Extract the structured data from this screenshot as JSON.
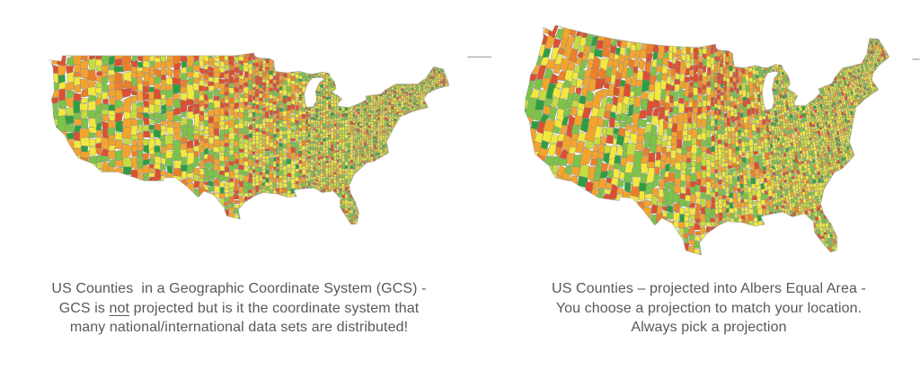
{
  "page": {
    "background": "#ffffff"
  },
  "left_figure": {
    "map_alt": "US counties choropleth shown in a Geographic Coordinate System (unprojected, stretched wide)",
    "caption": {
      "line1": "US Counties  in a Geographic Coordinate System (GCS) -",
      "line2_prefix": "GCS is ",
      "line2_underlined": "not",
      "line2_suffix": " projected but is it the coordinate system that",
      "line3": "many national/international data sets are distributed!"
    }
  },
  "right_figure": {
    "map_alt": "US counties choropleth projected into Albers Equal Area",
    "caption": {
      "line1": "US Counties – projected into Albers Equal Area -",
      "line2": "You choose a projection to match your location.",
      "line3": "Always pick a projection"
    }
  },
  "map_style": {
    "palette": [
      "#f2e83e",
      "#c6dc3e",
      "#7cc34a",
      "#2f9e41",
      "#f4a42c",
      "#ec7f28",
      "#dd4f31"
    ],
    "border_color": "#8a8a8a",
    "water_color": "#ffffff",
    "outline_color": "#9a9a9a",
    "artifact_line_color": "#a6a6a6"
  },
  "caption_color": "#595959"
}
